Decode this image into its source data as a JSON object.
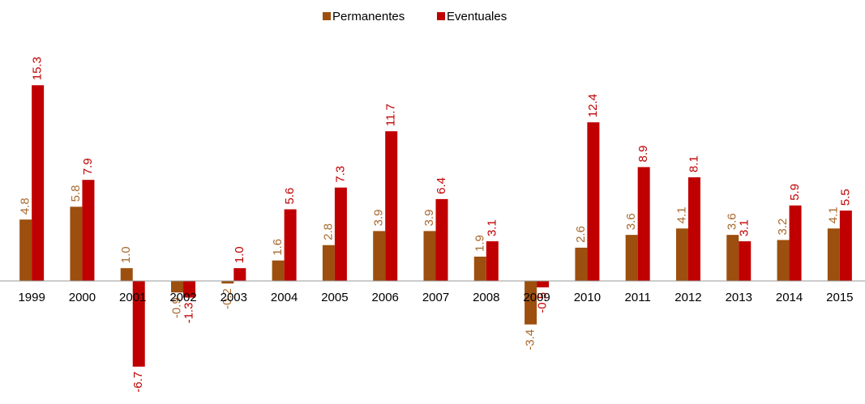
{
  "chart_data": {
    "type": "bar",
    "categories": [
      "1999",
      "2000",
      "2001",
      "2002",
      "2003",
      "2004",
      "2005",
      "2006",
      "2007",
      "2008",
      "2009",
      "2010",
      "2011",
      "2012",
      "2013",
      "2014",
      "2015"
    ],
    "series": [
      {
        "name": "Permanentes",
        "color": "#9c4f0e",
        "label_color": "#a8692e",
        "values": [
          4.8,
          5.8,
          1.0,
          -0.9,
          -0.2,
          1.6,
          2.8,
          3.9,
          3.9,
          1.9,
          -3.4,
          2.6,
          3.6,
          4.1,
          3.6,
          3.2,
          4.1
        ],
        "value_labels": [
          "4.8",
          "5.8",
          "1.0",
          "-0.9",
          "-0.2",
          "1.6",
          "2.8",
          "3.9",
          "3.9",
          "1.9",
          "-3.4",
          "2.6",
          "3.6",
          "4.1",
          "3.6",
          "3.2",
          "4.1"
        ]
      },
      {
        "name": "Eventuales",
        "color": "#c00000",
        "label_color": "#c00000",
        "values": [
          15.3,
          7.9,
          -6.7,
          -1.3,
          1.0,
          5.6,
          7.3,
          11.7,
          6.4,
          3.1,
          -0.5,
          12.4,
          8.9,
          8.1,
          3.1,
          5.9,
          5.5
        ],
        "value_labels": [
          "15.3",
          "7.9",
          "-6.7",
          "-1.3",
          "1.0",
          "5.6",
          "7.3",
          "11.7",
          "6.4",
          "3.1",
          "-0.5",
          "12.4",
          "8.9",
          "8.1",
          "3.1",
          "5.9",
          "5.5"
        ]
      }
    ],
    "legend": "top"
  }
}
